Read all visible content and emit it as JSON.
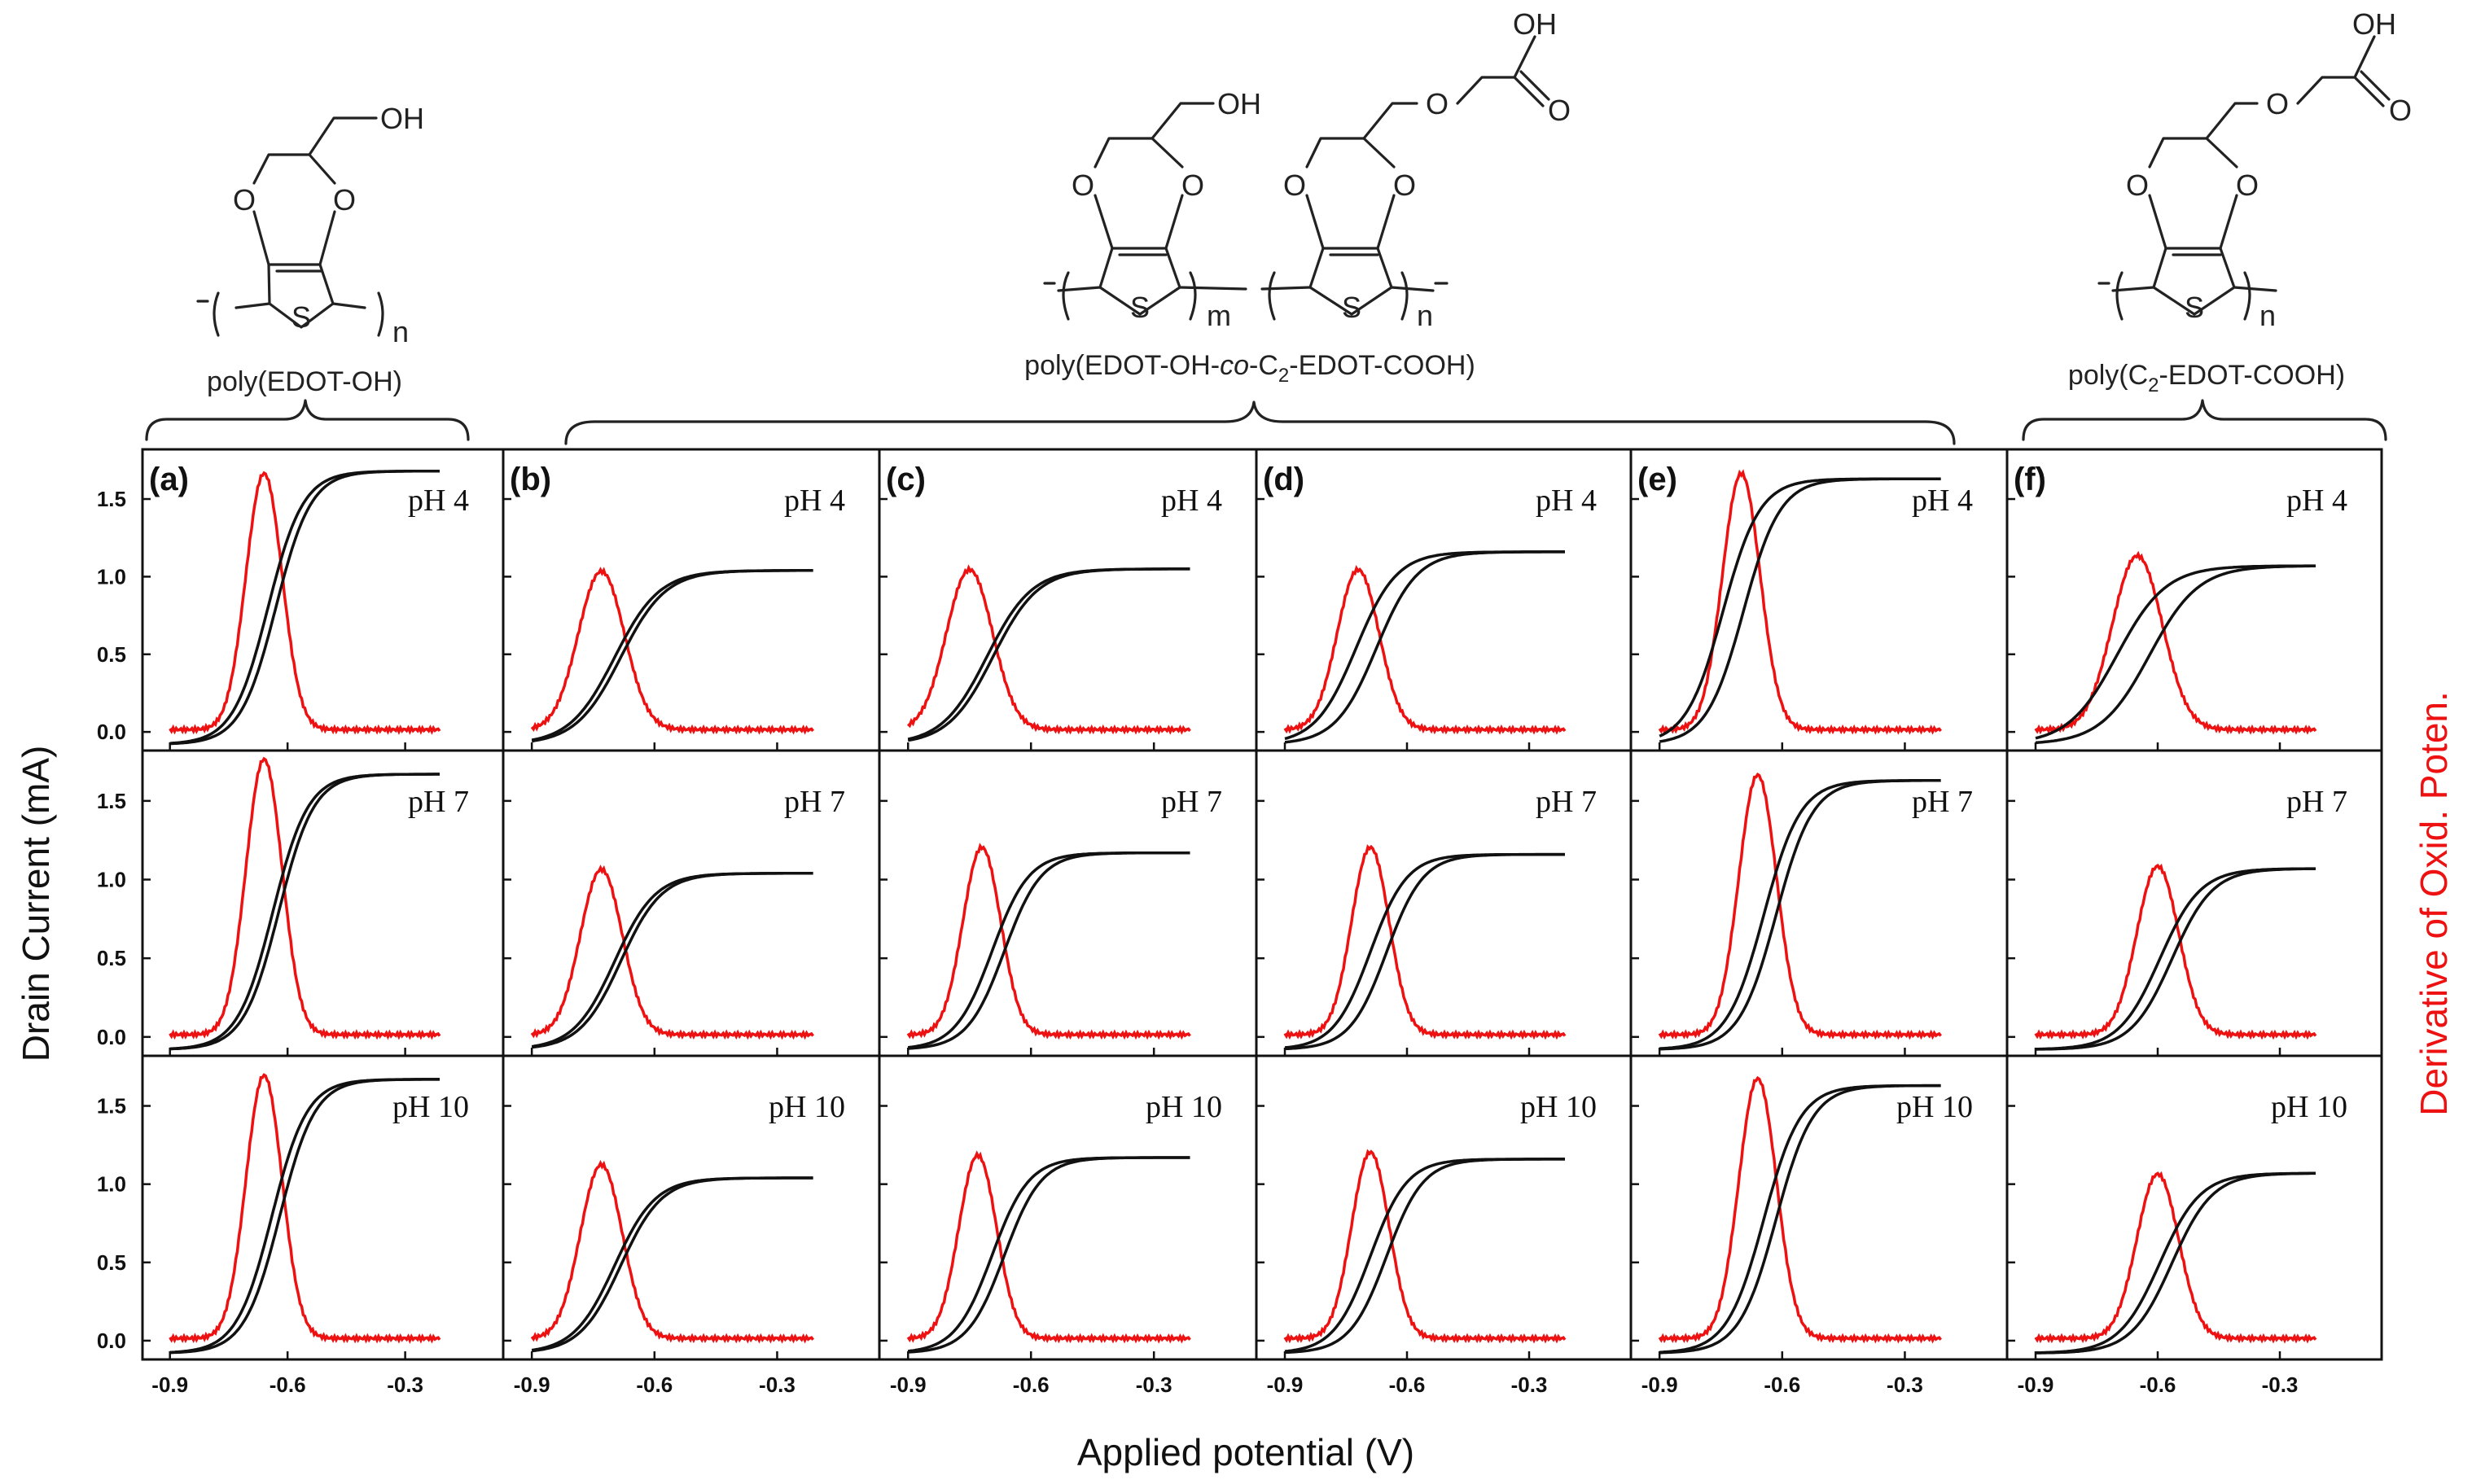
{
  "chart_data": {
    "type": "line",
    "layout": "grid 3 rows (pH) x 6 columns (polymer)",
    "xlabel": "Applied potential (V)",
    "ylabel_left": "Drain Current (mA)",
    "ylabel_right": "Derivative of Oxid. Poten.",
    "xlim": [
      -0.97,
      -0.05
    ],
    "xticks": [
      -0.9,
      -0.6,
      -0.3
    ],
    "xtick_labels": [
      "-0.9",
      "-0.6",
      "-0.3"
    ],
    "ylim": [
      -0.12,
      1.82
    ],
    "yticks": [
      0.0,
      0.5,
      1.0,
      1.5
    ],
    "ytick_labels": [
      "0.0",
      "0.5",
      "1.0",
      "1.5"
    ],
    "columns": [
      {
        "tag": "(a)",
        "polymer": "poly(EDOT-OH)"
      },
      {
        "tag": "(b)",
        "polymer": "poly(EDOT-OH-co-C2-EDOT-COOH)"
      },
      {
        "tag": "(c)",
        "polymer": "poly(EDOT-OH-co-C2-EDOT-COOH)"
      },
      {
        "tag": "(d)",
        "polymer": "poly(EDOT-OH-co-C2-EDOT-COOH)"
      },
      {
        "tag": "(e)",
        "polymer": "poly(EDOT-OH-co-C2-EDOT-COOH)"
      },
      {
        "tag": "(f)",
        "polymer": "poly(C2-EDOT-COOH)"
      }
    ],
    "rows": [
      {
        "label": "pH 4"
      },
      {
        "label": "pH 7"
      },
      {
        "label": "pH 10"
      }
    ],
    "series_description": "black = drain current transfer curve (forward/backward sweeps); red = derivative of drain current (oxidation potential peak)",
    "panels": [
      {
        "col": 0,
        "row": 0,
        "imax": 1.68,
        "v_half": -0.64,
        "width": 0.045,
        "sep": 0.02,
        "peak_v": -0.66,
        "peak_h": 1.65
      },
      {
        "col": 1,
        "row": 0,
        "imax": 1.04,
        "v_half": -0.69,
        "width": 0.055,
        "sep": 0.015,
        "peak_v": -0.73,
        "peak_h": 1.02
      },
      {
        "col": 2,
        "row": 0,
        "imax": 1.05,
        "v_half": -0.7,
        "width": 0.055,
        "sep": 0.015,
        "peak_v": -0.75,
        "peak_h": 1.03
      },
      {
        "col": 3,
        "row": 0,
        "imax": 1.16,
        "v_half": -0.7,
        "width": 0.05,
        "sep": 0.05,
        "peak_v": -0.72,
        "peak_h": 1.03
      },
      {
        "col": 4,
        "row": 0,
        "imax": 1.63,
        "v_half": -0.72,
        "width": 0.045,
        "sep": 0.05,
        "peak_v": -0.7,
        "peak_h": 1.65
      },
      {
        "col": 5,
        "row": 0,
        "imax": 1.07,
        "v_half": -0.66,
        "width": 0.06,
        "sep": 0.08,
        "peak_v": -0.65,
        "peak_h": 1.12
      },
      {
        "col": 0,
        "row": 1,
        "imax": 1.67,
        "v_half": -0.63,
        "width": 0.045,
        "sep": 0.015,
        "peak_v": -0.66,
        "peak_h": 1.75
      },
      {
        "col": 1,
        "row": 1,
        "imax": 1.04,
        "v_half": -0.69,
        "width": 0.05,
        "sep": 0.015,
        "peak_v": -0.73,
        "peak_h": 1.05
      },
      {
        "col": 2,
        "row": 1,
        "imax": 1.17,
        "v_half": -0.68,
        "width": 0.045,
        "sep": 0.03,
        "peak_v": -0.72,
        "peak_h": 1.19
      },
      {
        "col": 3,
        "row": 1,
        "imax": 1.16,
        "v_half": -0.67,
        "width": 0.045,
        "sep": 0.04,
        "peak_v": -0.69,
        "peak_h": 1.19
      },
      {
        "col": 4,
        "row": 1,
        "imax": 1.63,
        "v_half": -0.63,
        "width": 0.045,
        "sep": 0.03,
        "peak_v": -0.66,
        "peak_h": 1.65
      },
      {
        "col": 5,
        "row": 1,
        "imax": 1.07,
        "v_half": -0.58,
        "width": 0.05,
        "sep": 0.03,
        "peak_v": -0.6,
        "peak_h": 1.07
      },
      {
        "col": 0,
        "row": 2,
        "imax": 1.67,
        "v_half": -0.63,
        "width": 0.045,
        "sep": 0.02,
        "peak_v": -0.66,
        "peak_h": 1.68
      },
      {
        "col": 1,
        "row": 2,
        "imax": 1.04,
        "v_half": -0.69,
        "width": 0.05,
        "sep": 0.015,
        "peak_v": -0.73,
        "peak_h": 1.11
      },
      {
        "col": 2,
        "row": 2,
        "imax": 1.17,
        "v_half": -0.68,
        "width": 0.045,
        "sep": 0.03,
        "peak_v": -0.73,
        "peak_h": 1.17
      },
      {
        "col": 3,
        "row": 2,
        "imax": 1.16,
        "v_half": -0.67,
        "width": 0.045,
        "sep": 0.04,
        "peak_v": -0.69,
        "peak_h": 1.19
      },
      {
        "col": 4,
        "row": 2,
        "imax": 1.63,
        "v_half": -0.63,
        "width": 0.045,
        "sep": 0.03,
        "peak_v": -0.66,
        "peak_h": 1.66
      },
      {
        "col": 5,
        "row": 2,
        "imax": 1.07,
        "v_half": -0.58,
        "width": 0.05,
        "sep": 0.03,
        "peak_v": -0.6,
        "peak_h": 1.05
      }
    ]
  },
  "structures": {
    "left": {
      "name": "poly(EDOT-OH)",
      "substituent": "OH",
      "ring_o": "O",
      "ring_s": "S",
      "sub_n": "n"
    },
    "middle": {
      "name": "poly(EDOT-OH-co-C2-EDOT-COOH)",
      "name_pre": "poly(EDOT-OH-",
      "name_co": "co",
      "name_mid": "-C",
      "name_sub": "2",
      "name_post": "-EDOT-COOH)",
      "substituent_a": "OH",
      "substituent_b_oh": "OH",
      "substituent_b_o": "O",
      "substituent_b_carbonyl": "O",
      "ring_o": "O",
      "ring_s": "S",
      "sub_m": "m",
      "sub_n": "n"
    },
    "right": {
      "name": "poly(C2-EDOT-COOH)",
      "name_pre": "poly(C",
      "name_sub": "2",
      "name_post": "-EDOT-COOH)",
      "substituent_oh": "OH",
      "substituent_o": "O",
      "substituent_carbonyl": "O",
      "ring_o": "O",
      "ring_s": "S",
      "sub_n": "n"
    }
  },
  "colors": {
    "current": "#111111",
    "derivative": "#ee1111",
    "axis": "#111111"
  }
}
